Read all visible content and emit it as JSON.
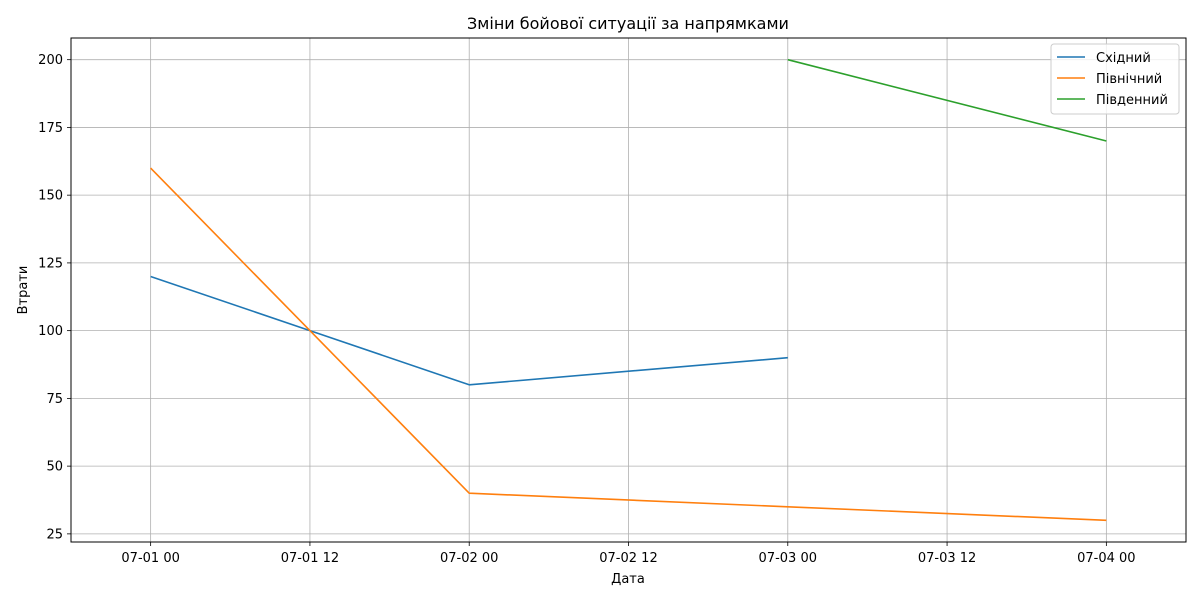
{
  "chart_data": {
    "type": "line",
    "title": "Зміни бойової ситуації за напрямками",
    "xlabel": "Дата",
    "ylabel": "Втрати",
    "x_ticks": [
      "07-01 00",
      "07-01 12",
      "07-02 00",
      "07-02 12",
      "07-03 00",
      "07-03 12",
      "07-04 00"
    ],
    "xlim": [
      "2023-06-30T18:00",
      "2023-07-04T06:00"
    ],
    "y_ticks": [
      25,
      50,
      75,
      100,
      125,
      150,
      175,
      200
    ],
    "ylim": [
      22,
      208
    ],
    "grid": true,
    "legend_position": "top-right",
    "series": [
      {
        "name": "Східний",
        "color": "#1f77b4",
        "points": [
          {
            "x": "2023-07-01T00:00",
            "y": 120
          },
          {
            "x": "2023-07-01T12:00",
            "y": 100
          },
          {
            "x": "2023-07-02T00:00",
            "y": 80
          },
          {
            "x": "2023-07-03T00:00",
            "y": 90
          }
        ]
      },
      {
        "name": "Північний",
        "color": "#ff7f0e",
        "points": [
          {
            "x": "2023-07-01T00:00",
            "y": 160
          },
          {
            "x": "2023-07-01T12:00",
            "y": 100
          },
          {
            "x": "2023-07-02T00:00",
            "y": 40
          },
          {
            "x": "2023-07-03T00:00",
            "y": 35
          },
          {
            "x": "2023-07-04T00:00",
            "y": 30
          }
        ]
      },
      {
        "name": "Південний",
        "color": "#2ca02c",
        "points": [
          {
            "x": "2023-07-03T00:00",
            "y": 200
          },
          {
            "x": "2023-07-04T00:00",
            "y": 170
          }
        ]
      }
    ]
  }
}
